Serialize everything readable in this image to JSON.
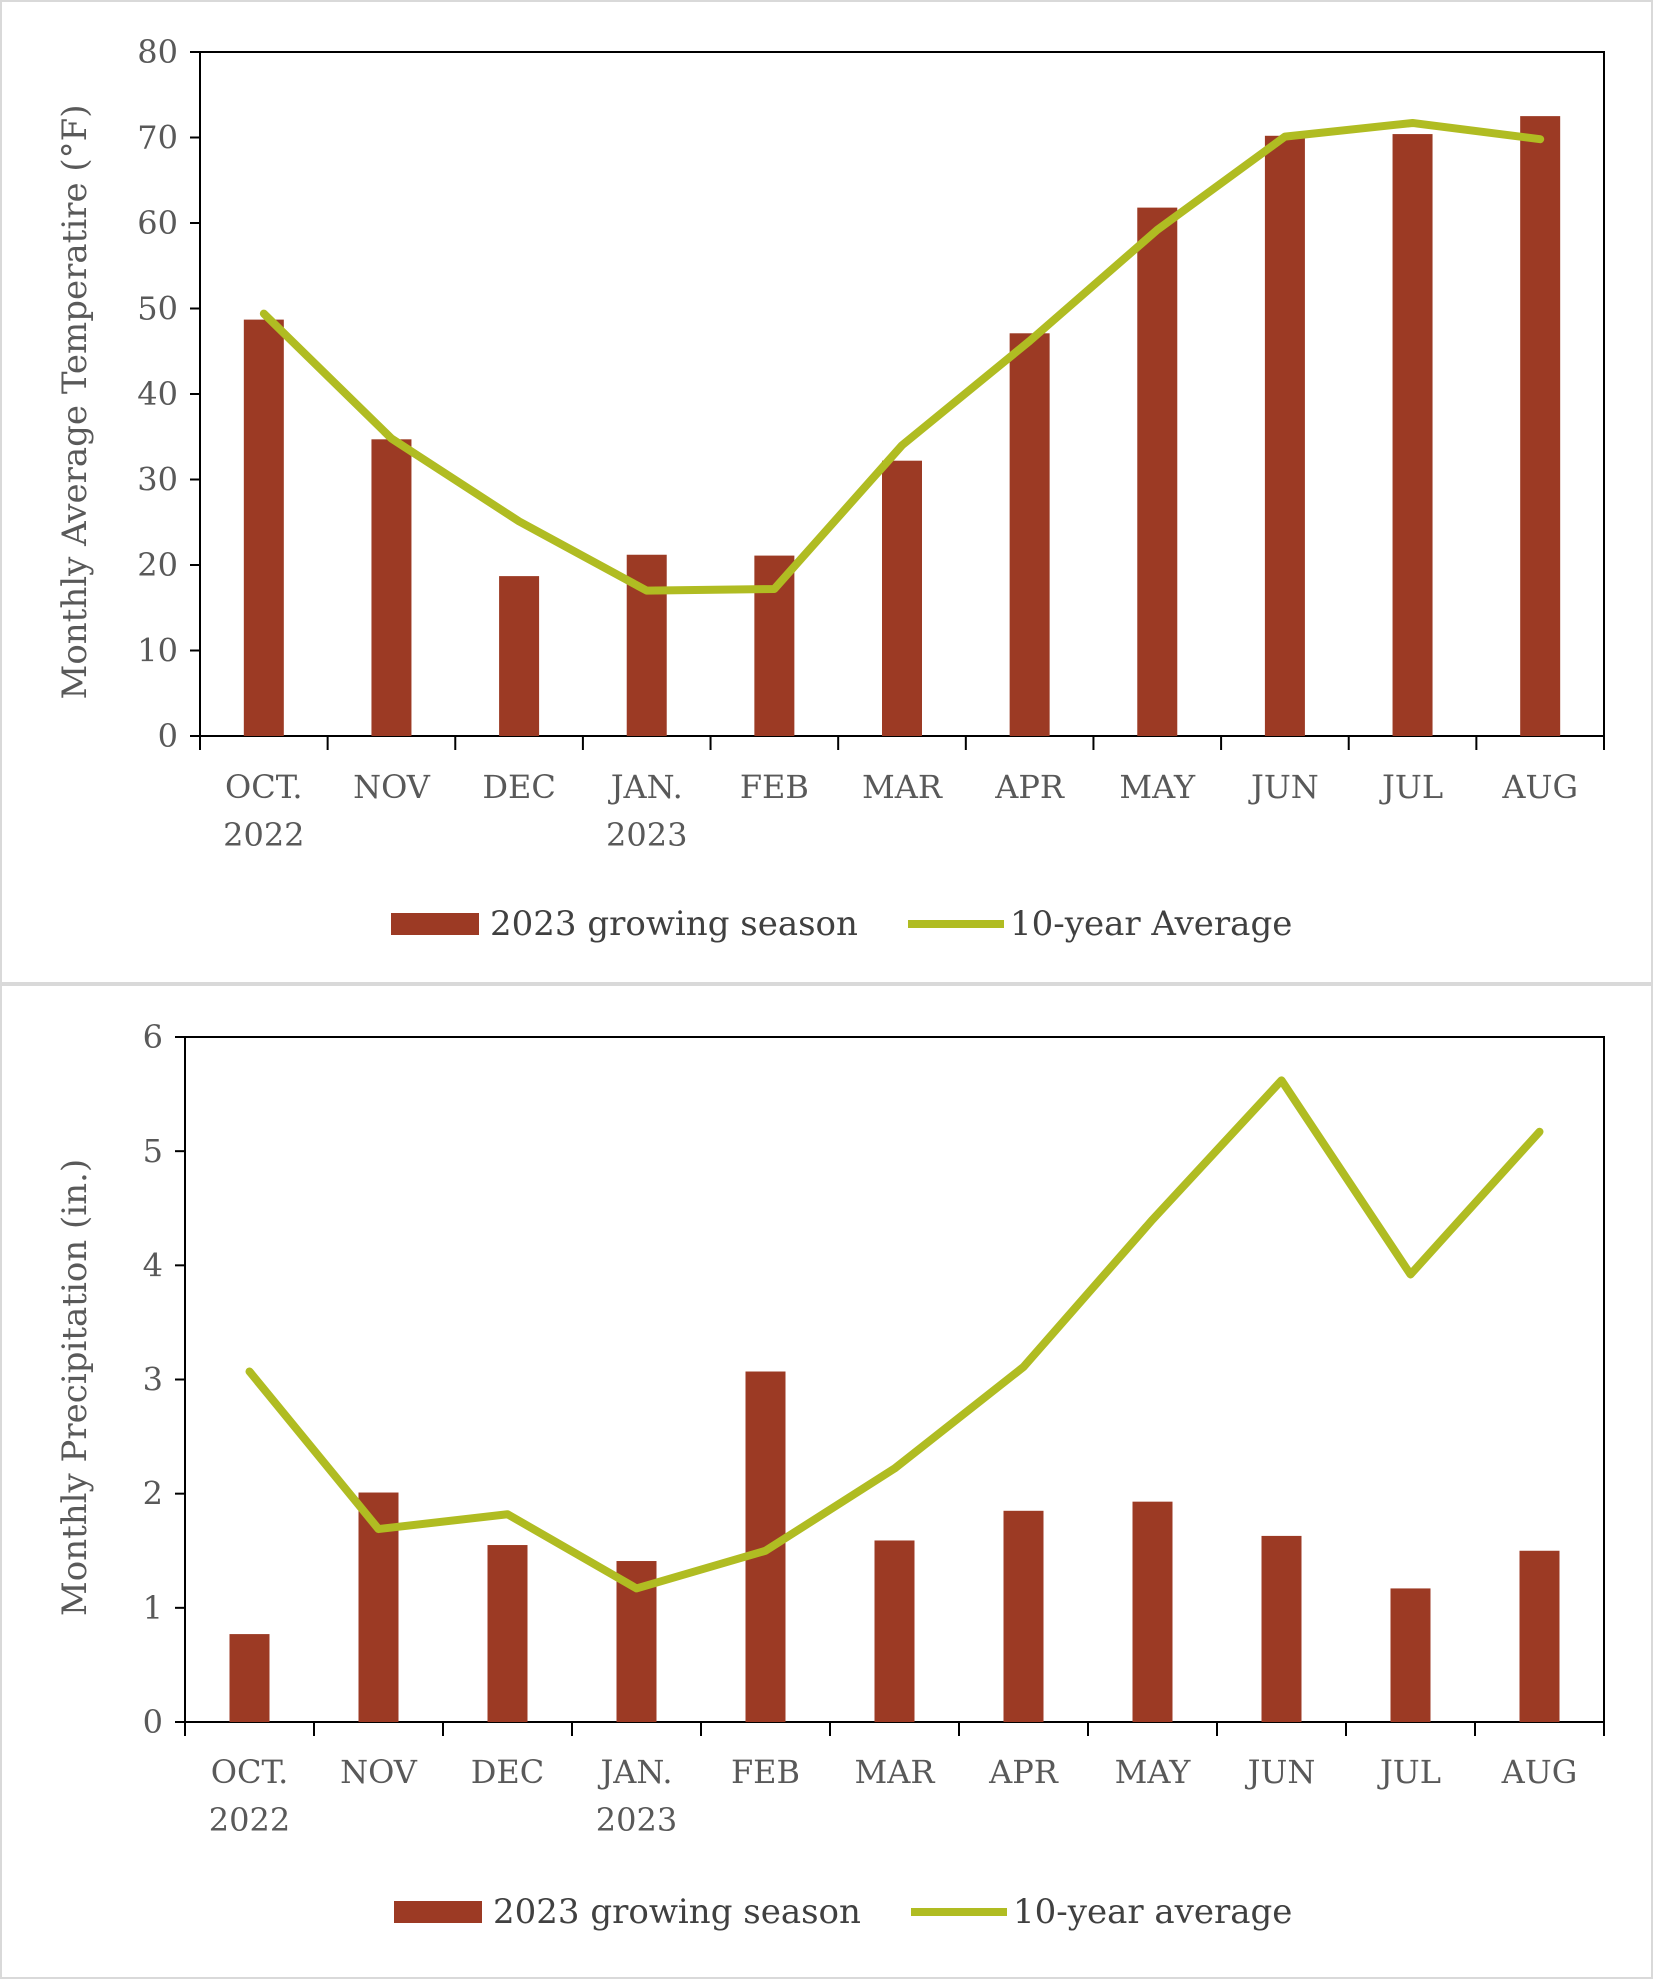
{
  "colors": {
    "bar": "#9c3a24",
    "line": "#b0bc22",
    "axis": "#000000",
    "text": "#595959"
  },
  "chart_data": [
    {
      "type": "bar+line",
      "categories": [
        [
          "OCT.",
          "2022"
        ],
        [
          "NOV"
        ],
        [
          "DEC"
        ],
        [
          "JAN.",
          "2023"
        ],
        [
          "FEB"
        ],
        [
          "MAR"
        ],
        [
          "APR"
        ],
        [
          "MAY"
        ],
        [
          "JUN"
        ],
        [
          "JUL"
        ],
        [
          "AUG"
        ]
      ],
      "ylabel": "Monthly Average Temperatire (°F)",
      "ylim": [
        0,
        80
      ],
      "yticks": [
        0,
        10,
        20,
        30,
        40,
        50,
        60,
        70,
        80
      ],
      "grid": false,
      "legend_position": "bottom",
      "series": [
        {
          "name": "2023 growing season",
          "type": "bar",
          "values": [
            48.7,
            34.7,
            18.7,
            21.2,
            21.1,
            32.2,
            47.1,
            61.8,
            70.2,
            70.4,
            72.5
          ]
        },
        {
          "name": "10-year Average",
          "type": "line",
          "values": [
            49.4,
            34.8,
            25.1,
            17.0,
            17.2,
            34.0,
            46.2,
            59.2,
            70.1,
            71.7,
            69.8
          ]
        }
      ]
    },
    {
      "type": "bar+line",
      "categories": [
        [
          "OCT.",
          "2022"
        ],
        [
          "NOV"
        ],
        [
          "DEC"
        ],
        [
          "JAN.",
          "2023"
        ],
        [
          "FEB"
        ],
        [
          "MAR"
        ],
        [
          "APR"
        ],
        [
          "MAY"
        ],
        [
          "JUN"
        ],
        [
          "JUL"
        ],
        [
          "AUG"
        ]
      ],
      "ylabel": "Monthly Precipitation (in.)",
      "ylim": [
        0,
        6
      ],
      "yticks": [
        0,
        1,
        2,
        3,
        4,
        5,
        6
      ],
      "grid": false,
      "legend_position": "bottom",
      "series": [
        {
          "name": "2023 growing season",
          "type": "bar",
          "values": [
            0.77,
            2.01,
            1.55,
            1.41,
            3.07,
            1.59,
            1.85,
            1.93,
            1.63,
            1.17,
            1.5
          ]
        },
        {
          "name": "10-year average",
          "type": "line",
          "values": [
            3.07,
            1.69,
            1.82,
            1.17,
            1.5,
            2.22,
            3.11,
            4.4,
            5.62,
            3.92,
            5.17
          ]
        }
      ]
    }
  ]
}
